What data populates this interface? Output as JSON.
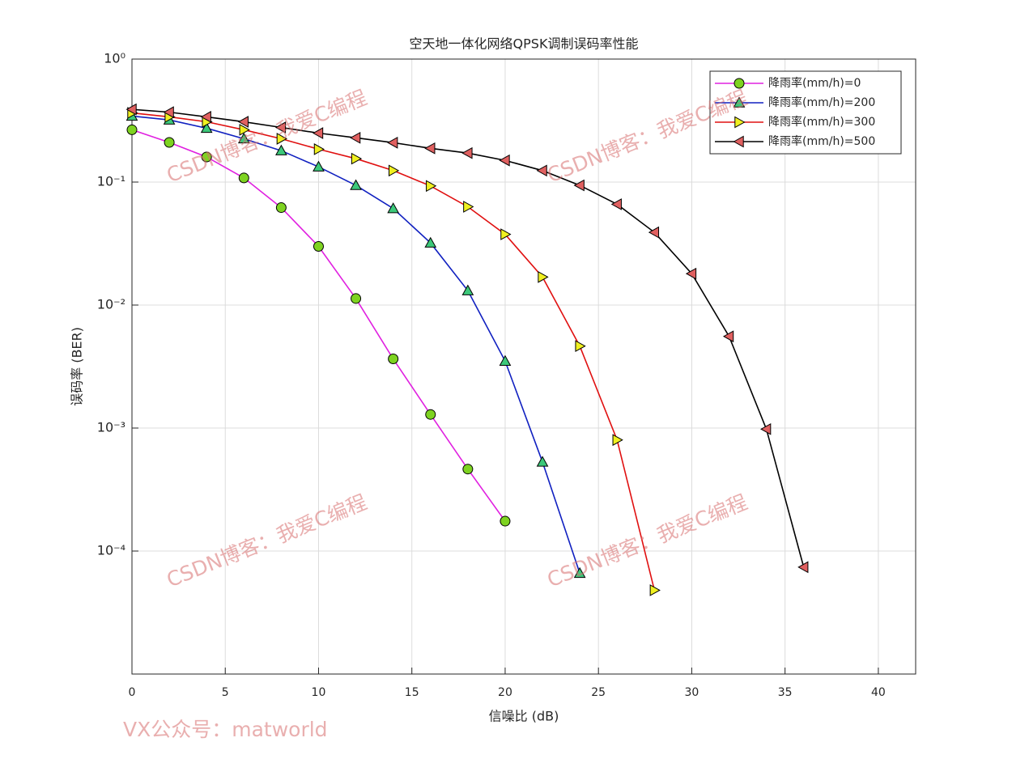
{
  "chart_data": {
    "type": "line",
    "title": "空天地一体化网络QPSK调制误码率性能",
    "x_label": "信噪比 (dB)",
    "y_label": "误码率 (BER)",
    "log_y": true,
    "grid": true,
    "legend_position": "northeast",
    "xlim": [
      0,
      42
    ],
    "xticks": [
      0,
      5,
      10,
      15,
      20,
      25,
      30,
      35,
      40
    ],
    "ylim": [
      1e-05,
      1
    ],
    "yticks": [
      {
        "value": 0.0001,
        "label": "10⁻⁴"
      },
      {
        "value": 0.001,
        "label": "10⁻³"
      },
      {
        "value": 0.01,
        "label": "10⁻²"
      },
      {
        "value": 0.1,
        "label": "10⁻¹"
      },
      {
        "value": 1,
        "label": "10⁰"
      }
    ],
    "series": [
      {
        "name": "降雨率(mm/h)=0",
        "color": "#e020e0",
        "marker": "circle",
        "marker_color": "#7ed321",
        "x": [
          0,
          2,
          4,
          6,
          8,
          10,
          12,
          14,
          16,
          18,
          20
        ],
        "values": [
          0.266,
          0.21,
          0.16,
          0.108,
          0.062,
          0.03,
          0.0113,
          0.00365,
          0.00129,
          0.000464,
          0.000175
        ]
      },
      {
        "name": "降雨率(mm/h)=200",
        "color": "#1020c0",
        "marker": "triangle-up",
        "marker_color": "#3cc87a",
        "x": [
          0,
          2,
          4,
          6,
          8,
          10,
          12,
          14,
          16,
          18,
          20,
          22,
          24
        ],
        "values": [
          0.344,
          0.32,
          0.274,
          0.225,
          0.18,
          0.133,
          0.094,
          0.061,
          0.032,
          0.0131,
          0.0035,
          0.00053,
          6.6e-05
        ]
      },
      {
        "name": "降雨率(mm/h)=300",
        "color": "#e01010",
        "marker": "triangle-right",
        "marker_color": "#f0f020",
        "x": [
          0,
          2,
          4,
          6,
          8,
          10,
          12,
          14,
          16,
          18,
          20,
          22,
          24,
          26,
          28
        ],
        "values": [
          0.365,
          0.339,
          0.309,
          0.266,
          0.225,
          0.185,
          0.155,
          0.124,
          0.093,
          0.063,
          0.0376,
          0.0169,
          0.00464,
          0.0008,
          4.8e-05
        ]
      },
      {
        "name": "降雨率(mm/h)=500",
        "color": "#000000",
        "marker": "triangle-left",
        "marker_color": "#e06060",
        "x": [
          0,
          2,
          4,
          6,
          8,
          10,
          12,
          14,
          16,
          18,
          20,
          22,
          24,
          26,
          28,
          30,
          32,
          34,
          36
        ],
        "values": [
          0.39,
          0.37,
          0.339,
          0.309,
          0.278,
          0.25,
          0.229,
          0.209,
          0.188,
          0.172,
          0.15,
          0.124,
          0.094,
          0.066,
          0.039,
          0.018,
          0.00556,
          0.00098,
          7.4e-05
        ]
      }
    ],
    "watermark": "CSDN博客：我爱C编程",
    "footer": "VX公众号：matworld"
  }
}
